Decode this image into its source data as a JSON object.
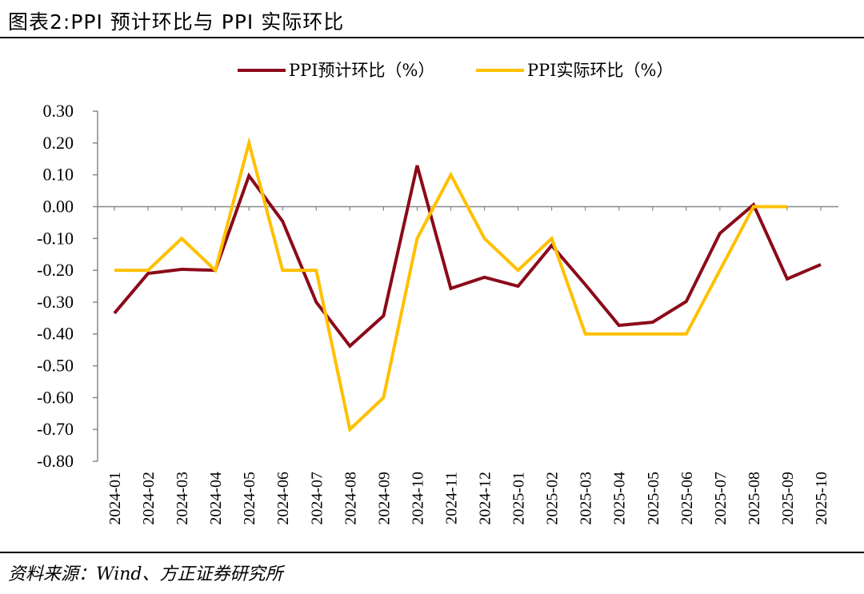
{
  "title": "图表2:PPI 预计环比与 PPI 实际环比",
  "source": "资料来源：Wind、方正证券研究所",
  "chart_data": {
    "type": "line",
    "title": "图表2:PPI 预计环比与 PPI 实际环比",
    "categories": [
      "2024-01",
      "2024-02",
      "2024-03",
      "2024-04",
      "2024-05",
      "2024-06",
      "2024-07",
      "2024-08",
      "2024-09",
      "2024-10",
      "2024-11",
      "2024-12",
      "2025-01",
      "2025-02",
      "2025-03",
      "2025-04",
      "2025-05",
      "2025-06",
      "2025-07",
      "2025-08",
      "2025-09",
      "2025-10"
    ],
    "series": [
      {
        "name": "PPI预计环比（%）",
        "color": "#8B0A1A",
        "values": [
          -0.335,
          -0.21,
          -0.197,
          -0.2,
          0.097,
          -0.046,
          -0.3,
          -0.438,
          -0.343,
          0.129,
          -0.257,
          -0.222,
          -0.25,
          -0.122,
          -0.245,
          -0.373,
          -0.363,
          -0.298,
          -0.084,
          0.006,
          -0.227,
          -0.182
        ]
      },
      {
        "name": "PPI实际环比（%）",
        "color": "#FFC000",
        "values": [
          -0.2,
          -0.2,
          -0.1,
          -0.2,
          0.2,
          -0.2,
          -0.2,
          -0.7,
          -0.6,
          -0.1,
          0.1,
          -0.1,
          -0.2,
          -0.1,
          -0.4,
          -0.4,
          -0.4,
          -0.4,
          -0.2,
          0.0,
          0.0,
          null
        ]
      }
    ],
    "ylim": [
      -0.8,
      0.3
    ],
    "yticks": [
      "0.30",
      "0.20",
      "0.10",
      "0.00",
      "-0.10",
      "-0.20",
      "-0.30",
      "-0.40",
      "-0.50",
      "-0.60",
      "-0.70",
      "-0.80"
    ],
    "grid": false,
    "legend": "top"
  }
}
